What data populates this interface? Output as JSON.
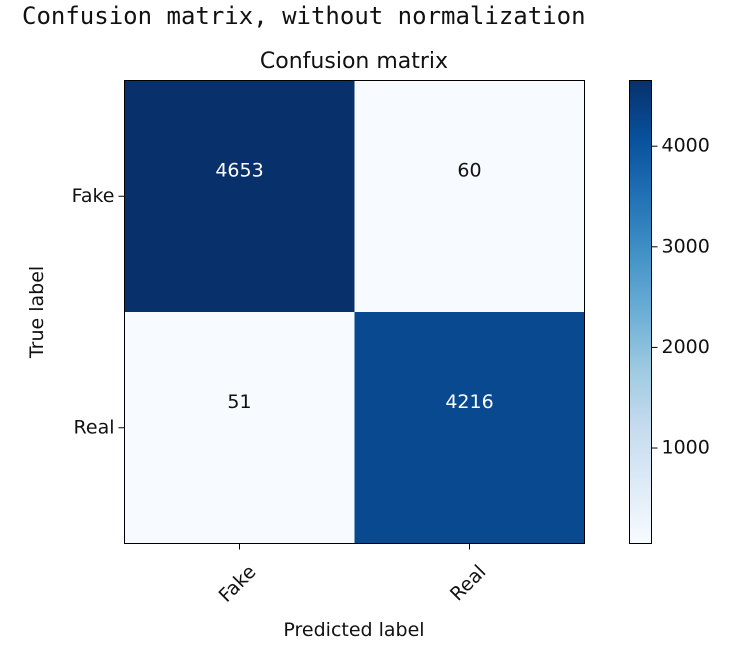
{
  "header_text": "Confusion matrix, without normalization",
  "colors": {
    "cell_low": "#f7fbff",
    "cell_high": "#08306b",
    "text_dark": "#111111",
    "text_light": "#ffffff"
  },
  "chart_data": {
    "type": "heatmap",
    "title": "Confusion matrix",
    "xlabel": "Predicted label",
    "ylabel": "True label",
    "x_categories": [
      "Fake",
      "Real"
    ],
    "y_categories": [
      "Fake",
      "Real"
    ],
    "values": [
      [
        4653,
        60
      ],
      [
        51,
        4216
      ]
    ],
    "value_labels": [
      [
        "4653",
        "60"
      ],
      [
        "51",
        "4216"
      ]
    ],
    "colormap": "Blues",
    "colorbar": {
      "range": [
        51,
        4653
      ],
      "ticks": [
        1000,
        2000,
        3000,
        4000
      ],
      "tick_labels": [
        "1000",
        "2000",
        "3000",
        "4000"
      ]
    }
  }
}
